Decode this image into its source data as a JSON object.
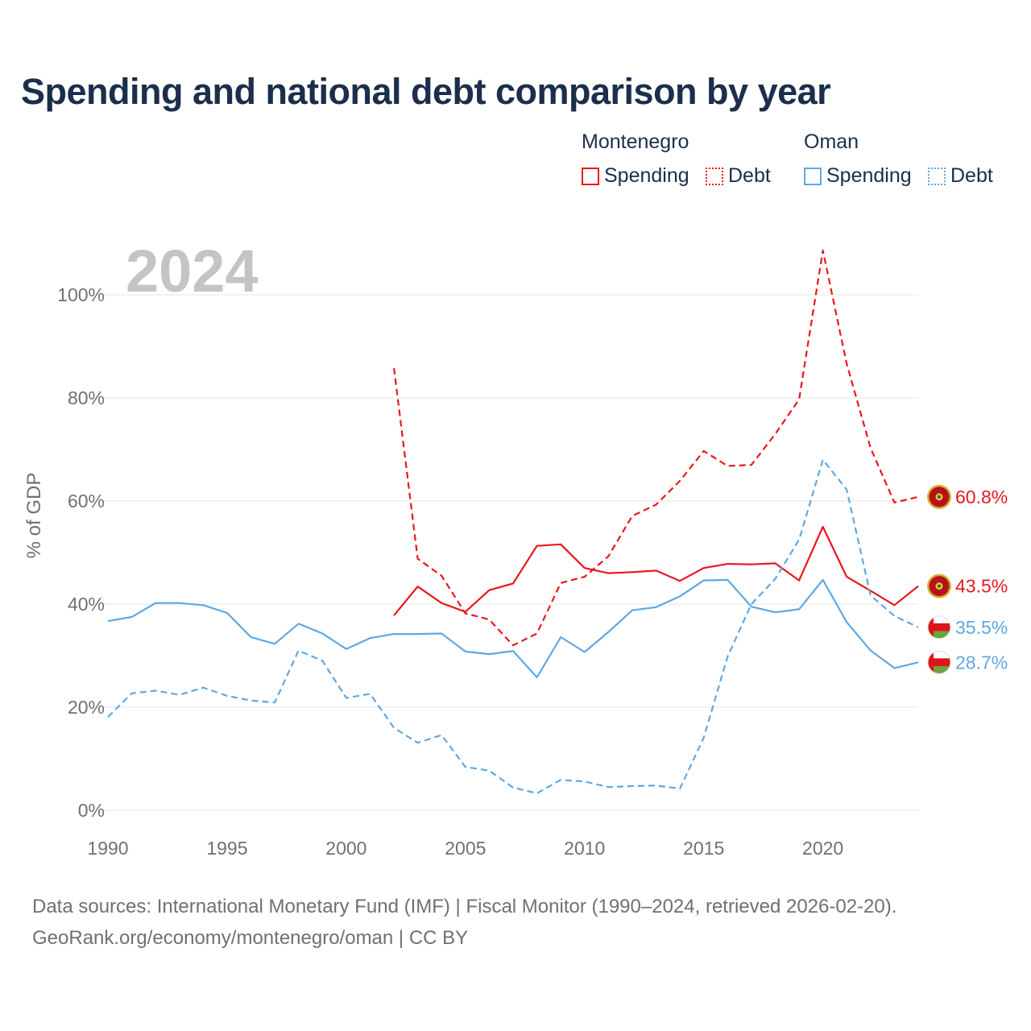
{
  "title": "Spending and national debt comparison by year",
  "legend": {
    "groups": [
      {
        "country": "Montenegro",
        "color": "#e8171f",
        "items": [
          {
            "label": "Spending",
            "style": "solid"
          },
          {
            "label": "Debt",
            "style": "dotted"
          }
        ]
      },
      {
        "country": "Oman",
        "color": "#5ea8e3",
        "items": [
          {
            "label": "Spending",
            "style": "solid"
          },
          {
            "label": "Debt",
            "style": "dotted"
          }
        ]
      }
    ]
  },
  "year_label": "2024",
  "source": {
    "line1": "Data sources: International Monetary Fund (IMF) | Fiscal Monitor (1990–2024, retrieved 2026-02-20).",
    "line2": "GeoRank.org/economy/montenegro/oman | CC BY"
  },
  "chart_data": {
    "type": "line",
    "ylabel": "% of GDP",
    "xlabel": "",
    "xlim": [
      1990,
      2024
    ],
    "ylim": [
      0,
      110
    ],
    "x_ticks": [
      1990,
      1995,
      2000,
      2005,
      2010,
      2015,
      2020
    ],
    "y_ticks": [
      0,
      20,
      40,
      60,
      80,
      100
    ],
    "y_tick_labels": [
      "0%",
      "20%",
      "40%",
      "60%",
      "80%",
      "100%"
    ],
    "grid": true,
    "series": [
      {
        "name": "Montenegro Debt",
        "country": "Montenegro",
        "metric": "Debt",
        "color": "#e8171f",
        "dash": true,
        "x": [
          2002,
          2003,
          2004,
          2005,
          2006,
          2007,
          2008,
          2009,
          2010,
          2011,
          2012,
          2013,
          2014,
          2015,
          2016,
          2017,
          2018,
          2019,
          2020,
          2021,
          2022,
          2023,
          2024
        ],
        "values": [
          85.8,
          48.8,
          45.5,
          38.2,
          37.0,
          32.0,
          34.3,
          44.1,
          45.3,
          49.3,
          57.1,
          59.3,
          63.9,
          69.7,
          66.8,
          67.0,
          73.0,
          79.7,
          108.6,
          86.6,
          70.3,
          59.7,
          60.8
        ],
        "end_label": "60.8%"
      },
      {
        "name": "Montenegro Spending",
        "country": "Montenegro",
        "metric": "Spending",
        "color": "#e8171f",
        "dash": false,
        "x": [
          2002,
          2003,
          2004,
          2005,
          2006,
          2007,
          2008,
          2009,
          2010,
          2011,
          2012,
          2013,
          2014,
          2015,
          2016,
          2017,
          2018,
          2019,
          2020,
          2021,
          2022,
          2023,
          2024
        ],
        "values": [
          37.8,
          43.4,
          40.2,
          38.5,
          42.7,
          44.0,
          51.3,
          51.6,
          47.0,
          46.0,
          46.2,
          46.5,
          44.5,
          47.0,
          47.8,
          47.7,
          47.9,
          44.6,
          55.0,
          45.3,
          42.6,
          39.8,
          43.5
        ],
        "end_label": "43.5%"
      },
      {
        "name": "Oman Spending",
        "country": "Oman",
        "metric": "Spending",
        "color": "#5ea8e3",
        "dash": false,
        "x": [
          1990,
          1991,
          1992,
          1993,
          1994,
          1995,
          1996,
          1997,
          1998,
          1999,
          2000,
          2001,
          2002,
          2003,
          2004,
          2005,
          2006,
          2007,
          2008,
          2009,
          2010,
          2011,
          2012,
          2013,
          2014,
          2015,
          2016,
          2017,
          2018,
          2019,
          2020,
          2021,
          2022,
          2023,
          2024
        ],
        "values": [
          36.7,
          37.5,
          40.2,
          40.2,
          39.8,
          38.3,
          33.6,
          32.3,
          36.2,
          34.3,
          31.3,
          33.4,
          34.2,
          34.2,
          34.3,
          30.8,
          30.3,
          30.9,
          25.8,
          33.6,
          30.7,
          34.6,
          38.8,
          39.4,
          41.5,
          44.6,
          44.7,
          39.5,
          38.4,
          39.0,
          44.7,
          36.5,
          31.0,
          27.6,
          28.7
        ],
        "end_label": "28.7%"
      },
      {
        "name": "Oman Debt",
        "country": "Oman",
        "metric": "Debt",
        "color": "#5ea8e3",
        "dash": true,
        "x": [
          1990,
          1991,
          1992,
          1993,
          1994,
          1995,
          1996,
          1997,
          1998,
          1999,
          2000,
          2001,
          2002,
          2003,
          2004,
          2005,
          2006,
          2007,
          2008,
          2009,
          2010,
          2011,
          2012,
          2013,
          2014,
          2015,
          2016,
          2017,
          2018,
          2019,
          2020,
          2021,
          2022,
          2023,
          2024
        ],
        "values": [
          18.1,
          22.7,
          23.2,
          22.4,
          23.8,
          22.2,
          21.3,
          20.9,
          31.0,
          29.0,
          21.8,
          22.6,
          16.0,
          13.1,
          14.6,
          8.4,
          7.7,
          4.4,
          3.3,
          5.9,
          5.6,
          4.5,
          4.7,
          4.8,
          4.2,
          14.1,
          29.8,
          40.0,
          44.9,
          52.5,
          68.0,
          62.2,
          41.7,
          37.7,
          35.5
        ],
        "end_label": "35.5%"
      }
    ]
  }
}
